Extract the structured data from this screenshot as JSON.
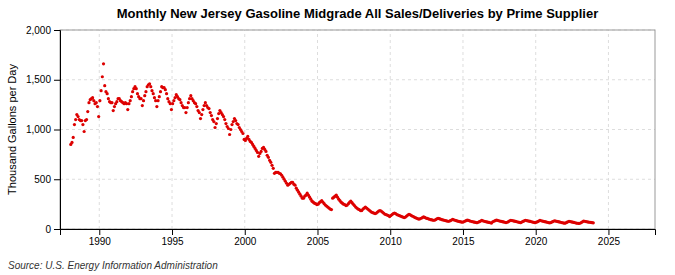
{
  "chart_data": {
    "type": "scatter",
    "title": "Monthly New Jersey Gasoline Midgrade All Sales/Deliveries by Prime Supplier",
    "ylabel": "Thousand Gallons per Day",
    "annotations": [
      "Source: U.S. Energy Information Administration"
    ],
    "color": "#dd0000",
    "grid": true,
    "xlim": [
      1987.3,
      2028.2
    ],
    "xticks": [
      1990,
      1995,
      2000,
      2005,
      2010,
      2015,
      2020,
      2025
    ],
    "ylim": [
      0,
      2000
    ],
    "yticks": [
      0,
      500,
      {
        "value": 1000,
        "label": "1,000"
      },
      {
        "value": 1500,
        "label": "1,500"
      },
      {
        "value": 2000,
        "label": "2,000"
      }
    ],
    "x": [
      1988.0416666667,
      1988.125,
      1988.2083333333,
      1988.2916666667,
      1988.375,
      1988.4583333333,
      1988.5416666667,
      1988.625,
      1988.7083333333,
      1988.7916666667,
      1988.875,
      1988.9583333333,
      1989.0416666667,
      1989.125,
      1989.2083333333,
      1989.2916666667,
      1989.375,
      1989.4583333333,
      1989.5416666667,
      1989.625,
      1989.7083333333,
      1989.7916666667,
      1989.875,
      1989.9583333333,
      1990.0416666667,
      1990.125,
      1990.2083333333,
      1990.2916666667,
      1990.375,
      1990.4583333333,
      1990.5416666667,
      1990.625,
      1990.7083333333,
      1990.7916666667,
      1990.875,
      1990.9583333333,
      1991.0416666667,
      1991.125,
      1991.2083333333,
      1991.2916666667,
      1991.375,
      1991.4583333333,
      1991.5416666667,
      1991.625,
      1991.7083333333,
      1991.7916666667,
      1991.875,
      1991.9583333333,
      1992.0416666667,
      1992.125,
      1992.2083333333,
      1992.2916666667,
      1992.375,
      1992.4583333333,
      1992.5416666667,
      1992.625,
      1992.7083333333,
      1992.7916666667,
      1992.875,
      1992.9583333333,
      1993.0416666667,
      1993.125,
      1993.2083333333,
      1993.2916666667,
      1993.375,
      1993.4583333333,
      1993.5416666667,
      1993.625,
      1993.7083333333,
      1993.7916666667,
      1993.875,
      1993.9583333333,
      1994.0416666667,
      1994.125,
      1994.2083333333,
      1994.2916666667,
      1994.375,
      1994.4583333333,
      1994.5416666667,
      1994.625,
      1994.7083333333,
      1994.7916666667,
      1994.875,
      1994.9583333333,
      1995.0416666667,
      1995.125,
      1995.2083333333,
      1995.2916666667,
      1995.375,
      1995.4583333333,
      1995.5416666667,
      1995.625,
      1995.7083333333,
      1995.7916666667,
      1995.875,
      1995.9583333333,
      1996.0416666667,
      1996.125,
      1996.2083333333,
      1996.2916666667,
      1996.375,
      1996.4583333333,
      1996.5416666667,
      1996.625,
      1996.7083333333,
      1996.7916666667,
      1996.875,
      1996.9583333333,
      1997.0416666667,
      1997.125,
      1997.2083333333,
      1997.2916666667,
      1997.375,
      1997.4583333333,
      1997.5416666667,
      1997.625,
      1997.7083333333,
      1997.7916666667,
      1997.875,
      1997.9583333333,
      1998.0416666667,
      1998.125,
      1998.2083333333,
      1998.2916666667,
      1998.375,
      1998.4583333333,
      1998.5416666667,
      1998.625,
      1998.7083333333,
      1998.7916666667,
      1998.875,
      1998.9583333333,
      1999.0416666667,
      1999.125,
      1999.2083333333,
      1999.2916666667,
      1999.375,
      1999.4583333333,
      1999.5416666667,
      1999.625,
      1999.7083333333,
      1999.7916666667,
      1999.875,
      1999.9583333333,
      2000.0416666667,
      2000.125,
      2000.2083333333,
      2000.2916666667,
      2000.375,
      2000.4583333333,
      2000.5416666667,
      2000.625,
      2000.7083333333,
      2000.7916666667,
      2000.875,
      2000.9583333333,
      2001.0416666667,
      2001.125,
      2001.2083333333,
      2001.2916666667,
      2001.375,
      2001.4583333333,
      2001.5416666667,
      2001.625,
      2001.7083333333,
      2001.7916666667,
      2001.875,
      2001.9583333333,
      2002.0416666667,
      2002.125,
      2002.2083333333,
      2002.2916666667,
      2002.375,
      2002.4583333333,
      2002.5416666667,
      2002.625,
      2002.7083333333,
      2002.7916666667,
      2002.875,
      2002.9583333333,
      2003.0416666667,
      2003.125,
      2003.2083333333,
      2003.2916666667,
      2003.375,
      2003.4583333333,
      2003.5416666667,
      2003.625,
      2003.7083333333,
      2003.7916666667,
      2003.875,
      2003.9583333333,
      2004.0416666667,
      2004.125,
      2004.2083333333,
      2004.2916666667,
      2004.375,
      2004.4583333333,
      2004.5416666667,
      2004.625,
      2004.7083333333,
      2004.7916666667,
      2004.875,
      2004.9583333333,
      2005.0416666667,
      2005.125,
      2005.2083333333,
      2005.2916666667,
      2005.375,
      2005.4583333333,
      2005.5416666667,
      2005.625,
      2005.7083333333,
      2005.7916666667,
      2005.875,
      2005.9583333333,
      2006.0416666667,
      2006.125,
      2006.2083333333,
      2006.2916666667,
      2006.375,
      2006.4583333333,
      2006.5416666667,
      2006.625,
      2006.7083333333,
      2006.7916666667,
      2006.875,
      2006.9583333333,
      2007.0416666667,
      2007.125,
      2007.2083333333,
      2007.2916666667,
      2007.375,
      2007.4583333333,
      2007.5416666667,
      2007.625,
      2007.7083333333,
      2007.7916666667,
      2007.875,
      2007.9583333333,
      2008.0416666667,
      2008.125,
      2008.2083333333,
      2008.2916666667,
      2008.375,
      2008.4583333333,
      2008.5416666667,
      2008.625,
      2008.7083333333,
      2008.7916666667,
      2008.875,
      2008.9583333333,
      2009.0416666667,
      2009.125,
      2009.2083333333,
      2009.2916666667,
      2009.375,
      2009.4583333333,
      2009.5416666667,
      2009.625,
      2009.7083333333,
      2009.7916666667,
      2009.875,
      2009.9583333333,
      2010.0416666667,
      2010.125,
      2010.2083333333,
      2010.2916666667,
      2010.375,
      2010.4583333333,
      2010.5416666667,
      2010.625,
      2010.7083333333,
      2010.7916666667,
      2010.875,
      2010.9583333333,
      2011.0416666667,
      2011.125,
      2011.2083333333,
      2011.2916666667,
      2011.375,
      2011.4583333333,
      2011.5416666667,
      2011.625,
      2011.7083333333,
      2011.7916666667,
      2011.875,
      2011.9583333333,
      2012.0416666667,
      2012.125,
      2012.2083333333,
      2012.2916666667,
      2012.375,
      2012.4583333333,
      2012.5416666667,
      2012.625,
      2012.7083333333,
      2012.7916666667,
      2012.875,
      2012.9583333333,
      2013.0416666667,
      2013.125,
      2013.2083333333,
      2013.2916666667,
      2013.375,
      2013.4583333333,
      2013.5416666667,
      2013.625,
      2013.7083333333,
      2013.7916666667,
      2013.875,
      2013.9583333333,
      2014.0416666667,
      2014.125,
      2014.2083333333,
      2014.2916666667,
      2014.375,
      2014.4583333333,
      2014.5416666667,
      2014.625,
      2014.7083333333,
      2014.7916666667,
      2014.875,
      2014.9583333333,
      2015.0416666667,
      2015.125,
      2015.2083333333,
      2015.2916666667,
      2015.375,
      2015.4583333333,
      2015.5416666667,
      2015.625,
      2015.7083333333,
      2015.7916666667,
      2015.875,
      2015.9583333333,
      2016.0416666667,
      2016.125,
      2016.2083333333,
      2016.2916666667,
      2016.375,
      2016.4583333333,
      2016.5416666667,
      2016.625,
      2016.7083333333,
      2016.7916666667,
      2016.875,
      2016.9583333333,
      2017.0416666667,
      2017.125,
      2017.2083333333,
      2017.2916666667,
      2017.375,
      2017.4583333333,
      2017.5416666667,
      2017.625,
      2017.7083333333,
      2017.7916666667,
      2017.875,
      2017.9583333333,
      2018.0416666667,
      2018.125,
      2018.2083333333,
      2018.2916666667,
      2018.375,
      2018.4583333333,
      2018.5416666667,
      2018.625,
      2018.7083333333,
      2018.7916666667,
      2018.875,
      2018.9583333333,
      2019.0416666667,
      2019.125,
      2019.2083333333,
      2019.2916666667,
      2019.375,
      2019.4583333333,
      2019.5416666667,
      2019.625,
      2019.7083333333,
      2019.7916666667,
      2019.875,
      2019.9583333333,
      2020.0416666667,
      2020.125,
      2020.2083333333,
      2020.2916666667,
      2020.375,
      2020.4583333333,
      2020.5416666667,
      2020.625,
      2020.7083333333,
      2020.7916666667,
      2020.875,
      2020.9583333333,
      2021.0416666667,
      2021.125,
      2021.2083333333,
      2021.2916666667,
      2021.375,
      2021.4583333333,
      2021.5416666667,
      2021.625,
      2021.7083333333,
      2021.7916666667,
      2021.875,
      2021.9583333333,
      2022.0416666667,
      2022.125,
      2022.2083333333,
      2022.2916666667,
      2022.375,
      2022.4583333333,
      2022.5416666667,
      2022.625,
      2022.7083333333,
      2022.7916666667,
      2022.875,
      2022.9583333333,
      2023.0416666667,
      2023.125,
      2023.2083333333,
      2023.2916666667,
      2023.375,
      2023.4583333333,
      2023.5416666667,
      2023.625,
      2023.7083333333,
      2023.7916666667,
      2023.875,
      2023.9583333333
    ],
    "values": [
      850,
      870,
      920,
      1050,
      1100,
      1150,
      1130,
      1100,
      1090,
      1090,
      1050,
      980,
      1090,
      1100,
      1180,
      1270,
      1300,
      1310,
      1320,
      1290,
      1260,
      1270,
      1230,
      1130,
      1290,
      1390,
      1530,
      1660,
      1440,
      1380,
      1360,
      1310,
      1280,
      1270,
      1270,
      1190,
      1230,
      1260,
      1280,
      1310,
      1310,
      1290,
      1280,
      1270,
      1260,
      1270,
      1260,
      1200,
      1260,
      1290,
      1330,
      1380,
      1410,
      1430,
      1410,
      1360,
      1330,
      1310,
      1310,
      1240,
      1290,
      1340,
      1380,
      1430,
      1450,
      1460,
      1430,
      1390,
      1360,
      1320,
      1290,
      1230,
      1290,
      1330,
      1380,
      1430,
      1420,
      1420,
      1400,
      1360,
      1310,
      1280,
      1260,
      1200,
      1260,
      1290,
      1320,
      1350,
      1330,
      1310,
      1300,
      1270,
      1240,
      1220,
      1220,
      1170,
      1220,
      1270,
      1310,
      1340,
      1310,
      1290,
      1270,
      1260,
      1230,
      1190,
      1170,
      1110,
      1150,
      1200,
      1240,
      1270,
      1240,
      1220,
      1210,
      1170,
      1140,
      1100,
      1080,
      1020,
      1060,
      1110,
      1160,
      1190,
      1170,
      1150,
      1130,
      1100,
      1060,
      1030,
      1010,
      950,
      1000,
      1050,
      1080,
      1110,
      1090,
      1060,
      1050,
      1020,
      1000,
      980,
      960,
      900,
      890,
      910,
      930,
      900,
      880,
      870,
      850,
      830,
      810,
      790,
      770,
      730,
      760,
      780,
      810,
      820,
      800,
      780,
      740,
      720,
      690,
      670,
      640,
      610,
      560,
      570,
      570,
      570,
      560,
      555,
      540,
      520,
      500,
      480,
      460,
      440,
      450,
      460,
      470,
      470,
      450,
      440,
      410,
      390,
      370,
      350,
      330,
      310,
      310,
      330,
      340,
      360,
      340,
      320,
      300,
      280,
      270,
      260,
      255,
      245,
      250,
      265,
      275,
      285,
      270,
      255,
      240,
      230,
      220,
      210,
      200,
      195,
      310,
      320,
      330,
      340,
      320,
      300,
      285,
      270,
      260,
      250,
      245,
      235,
      240,
      255,
      270,
      280,
      265,
      250,
      235,
      220,
      210,
      200,
      195,
      185,
      185,
      200,
      210,
      220,
      210,
      200,
      190,
      180,
      170,
      165,
      160,
      155,
      160,
      170,
      180,
      185,
      180,
      170,
      160,
      150,
      145,
      140,
      135,
      125,
      135,
      145,
      155,
      160,
      155,
      145,
      140,
      135,
      130,
      125,
      120,
      115,
      120,
      130,
      140,
      148,
      142,
      135,
      128,
      122,
      115,
      110,
      105,
      100,
      102,
      108,
      115,
      122,
      116,
      110,
      106,
      102,
      98,
      94,
      91,
      88,
      88,
      95,
      102,
      108,
      104,
      99,
      95,
      91,
      88,
      85,
      82,
      78,
      78,
      84,
      90,
      96,
      92,
      88,
      84,
      80,
      77,
      74,
      71,
      68,
      72,
      78,
      84,
      90,
      86,
      82,
      78,
      75,
      72,
      69,
      66,
      63,
      68,
      74,
      80,
      86,
      82,
      78,
      75,
      72,
      69,
      66,
      63,
      60,
      72,
      78,
      84,
      90,
      87,
      83,
      80,
      77,
      74,
      71,
      68,
      65,
      68,
      75,
      82,
      88,
      85,
      82,
      79,
      76,
      73,
      70,
      67,
      64,
      70,
      76,
      82,
      88,
      85,
      82,
      79,
      76,
      73,
      70,
      67,
      64,
      68,
      74,
      80,
      86,
      83,
      80,
      77,
      74,
      71,
      68,
      65,
      62,
      65,
      71,
      77,
      83,
      80,
      77,
      74,
      71,
      68,
      65,
      62,
      59,
      60,
      66,
      72,
      78,
      75,
      72,
      69,
      66,
      63,
      60,
      58,
      56,
      58,
      65,
      72,
      80,
      78,
      75,
      72,
      70,
      68,
      66,
      64,
      62
    ]
  }
}
